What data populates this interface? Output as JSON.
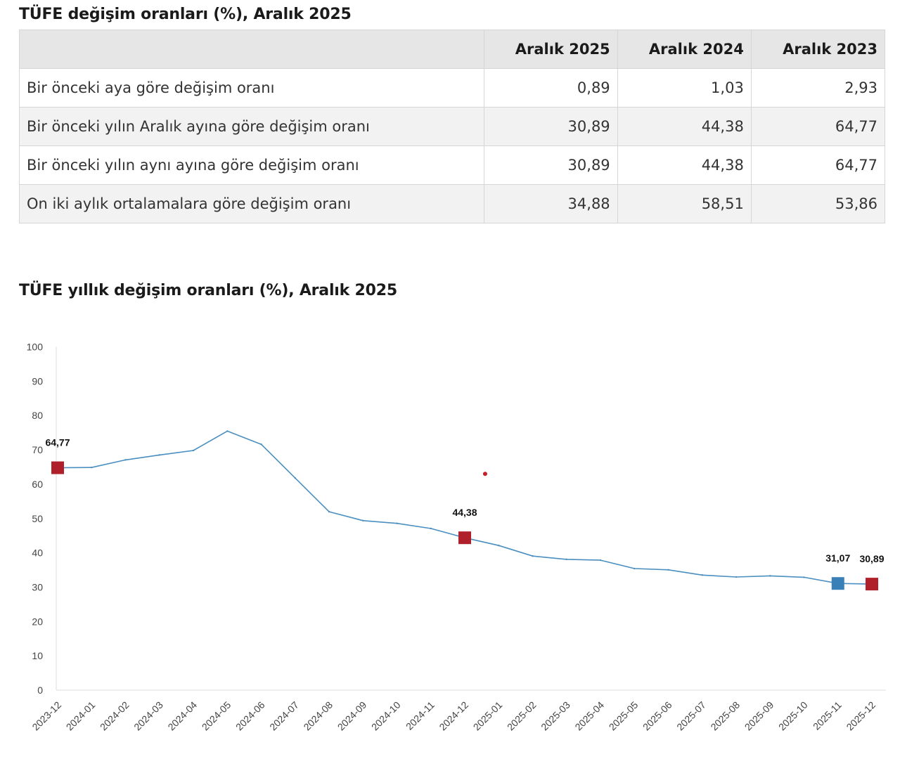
{
  "table": {
    "title": "TÜFE değişim oranları (%), Aralık 2025",
    "headers": [
      "",
      "Aralık 2025",
      "Aralık 2024",
      "Aralık 2023"
    ],
    "rows": [
      {
        "label": "Bir önceki aya göre değişim oranı",
        "values": [
          "0,89",
          "1,03",
          "2,93"
        ]
      },
      {
        "label": "Bir önceki yılın Aralık ayına göre değişim oranı",
        "values": [
          "30,89",
          "44,38",
          "64,77"
        ]
      },
      {
        "label": "Bir önceki yılın aynı ayına göre değişim oranı",
        "values": [
          "30,89",
          "44,38",
          "64,77"
        ]
      },
      {
        "label": "On iki aylık ortalamalara göre değişim oranı",
        "values": [
          "34,88",
          "58,51",
          "53,86"
        ]
      }
    ]
  },
  "chart_data": {
    "type": "line",
    "title": "TÜFE yıllık değişim oranları (%), Aralık 2025",
    "xlabel": "",
    "ylabel": "",
    "ylim": [
      0,
      100
    ],
    "yticks": [
      0,
      10,
      20,
      30,
      40,
      50,
      60,
      70,
      80,
      90,
      100
    ],
    "grid": false,
    "x": [
      "2023-12",
      "2024-01",
      "2024-02",
      "2024-03",
      "2024-04",
      "2024-05",
      "2024-06",
      "2024-07",
      "2024-08",
      "2024-09",
      "2024-10",
      "2024-11",
      "2024-12",
      "2025-01",
      "2025-02",
      "2025-03",
      "2025-04",
      "2025-05",
      "2025-06",
      "2025-07",
      "2025-08",
      "2025-09",
      "2025-10",
      "2025-11",
      "2025-12"
    ],
    "series": [
      {
        "values": [
          64.77,
          64.86,
          67.07,
          68.5,
          69.8,
          75.45,
          71.6,
          61.78,
          51.97,
          49.38,
          48.58,
          47.09,
          44.38,
          42.12,
          39.05,
          38.1,
          37.86,
          35.41,
          35.05,
          33.52,
          32.95,
          33.29,
          32.87,
          31.07,
          30.89
        ],
        "color": "#4a8fc0"
      }
    ],
    "highlights": [
      {
        "index": 0,
        "label": "64,77",
        "color": "#b0202a"
      },
      {
        "index": 12,
        "label": "44,38",
        "color": "#b0202a"
      },
      {
        "index": 23,
        "label": "31,07",
        "color": "#3a80b8"
      },
      {
        "index": 24,
        "label": "30,89",
        "color": "#b0202a"
      }
    ],
    "stray_dot": {
      "x_index": 12.6,
      "y": 63,
      "color": "#c8202a"
    }
  }
}
